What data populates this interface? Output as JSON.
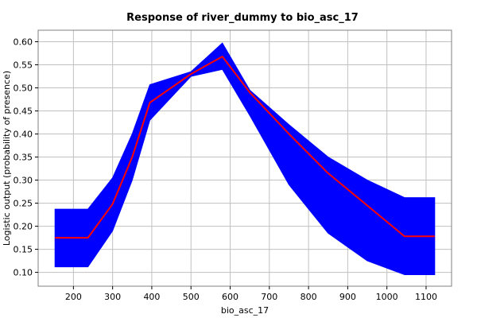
{
  "chart_data": {
    "type": "area",
    "title": "Response of river_dummy to bio_asc_17",
    "xlabel": "bio_asc_17",
    "ylabel": "Logistic output (probability of presence)",
    "xlim": [
      110,
      1165
    ],
    "ylim": [
      0.07,
      0.625
    ],
    "x_ticks": [
      200,
      300,
      400,
      500,
      600,
      700,
      800,
      900,
      1000,
      1100
    ],
    "y_ticks": [
      0.1,
      0.15,
      0.2,
      0.25,
      0.3,
      0.35,
      0.4,
      0.45,
      0.5,
      0.55,
      0.6
    ],
    "grid": true,
    "series": [
      {
        "name": "",
        "kind": "band",
        "color": "#0000ff",
        "x": [
          153,
          237,
          300,
          350,
          395,
          500,
          580,
          650,
          750,
          850,
          950,
          1045,
          1122
        ],
        "lower": [
          0.112,
          0.112,
          0.19,
          0.3,
          0.43,
          0.525,
          0.54,
          0.44,
          0.29,
          0.185,
          0.125,
          0.095,
          0.095
        ],
        "upper": [
          0.237,
          0.237,
          0.305,
          0.4,
          0.507,
          0.535,
          0.597,
          0.495,
          0.42,
          0.35,
          0.3,
          0.262,
          0.262
        ]
      },
      {
        "name": "",
        "kind": "line",
        "color": "#ff0000",
        "x": [
          153,
          237,
          300,
          350,
          395,
          500,
          580,
          650,
          750,
          850,
          950,
          1045,
          1122
        ],
        "y": [
          0.175,
          0.175,
          0.248,
          0.35,
          0.468,
          0.53,
          0.568,
          0.49,
          0.4,
          0.315,
          0.245,
          0.178,
          0.178
        ]
      }
    ]
  }
}
